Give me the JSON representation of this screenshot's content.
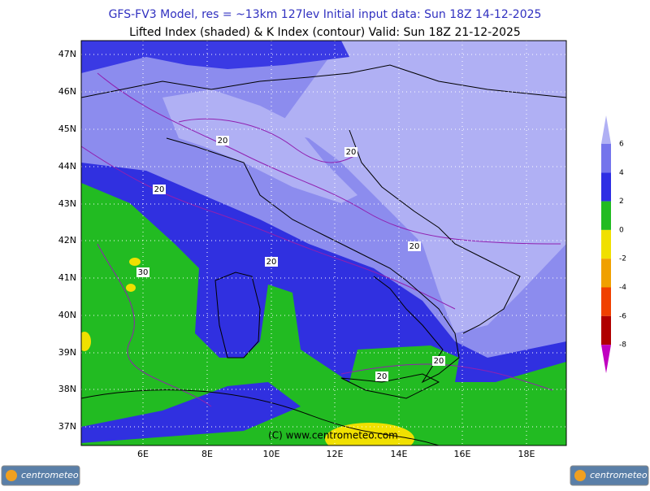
{
  "header": {
    "title": "GFS-FV3 Model, res = ~13km 127lev    Initial input data: Sun 18Z 14-12-2025",
    "subtitle": "Lifted Index (shaded) & K Index (contour) Valid: Sun 18Z 21-12-2025"
  },
  "map": {
    "lat_labels": [
      "47N",
      "46N",
      "45N",
      "44N",
      "43N",
      "42N",
      "41N",
      "40N",
      "39N",
      "38N",
      "37N"
    ],
    "lon_labels": [
      "6E",
      "8E",
      "10E",
      "12E",
      "14E",
      "16E",
      "18E"
    ],
    "contour_labels": [
      "20",
      "20",
      "20",
      "20",
      "30",
      "20",
      "20",
      "20"
    ],
    "watermark": "(C) www.centrometeo.com"
  },
  "colorbar": {
    "labels": [
      "6",
      "4",
      "2",
      "0",
      "-2",
      "-4",
      "-6",
      "-8"
    ],
    "colors": [
      "#b0b0f4",
      "#7474ec",
      "#2e2ee4",
      "#22bb22",
      "#f0e000",
      "#f0a000",
      "#f04000",
      "#b00000",
      "#c000c0"
    ]
  },
  "logo": {
    "left": "centrometeo",
    "right": "centrometeo"
  }
}
